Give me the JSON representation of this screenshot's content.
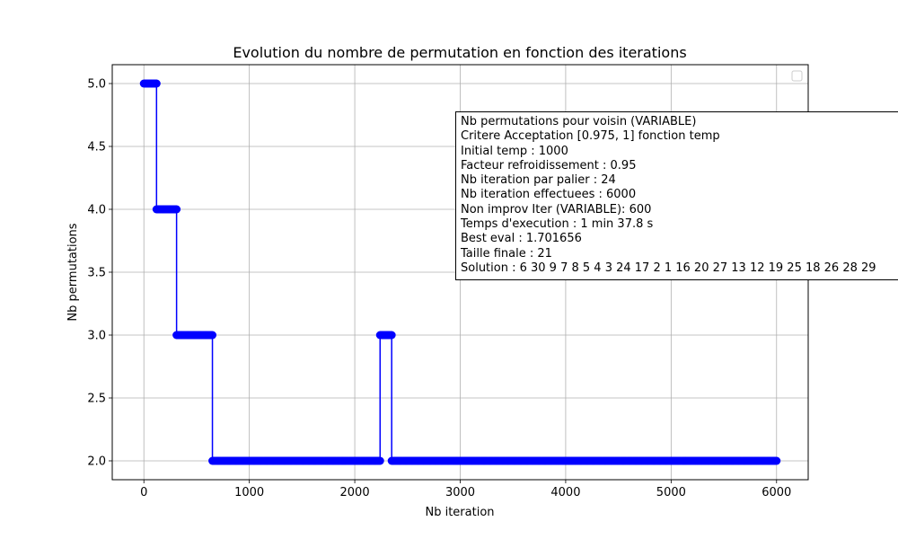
{
  "chart_data": {
    "type": "line",
    "title": "Evolution du nombre de permutation en fonction des iterations",
    "xlabel": "Nb iteration",
    "ylabel": "Nb permutations",
    "xlim": [
      -300,
      6300
    ],
    "ylim": [
      1.85,
      5.15
    ],
    "xticks": [
      0,
      1000,
      2000,
      3000,
      4000,
      5000,
      6000
    ],
    "xtick_labels": [
      "0",
      "1000",
      "2000",
      "3000",
      "4000",
      "5000",
      "6000"
    ],
    "yticks": [
      2.0,
      2.5,
      3.0,
      3.5,
      4.0,
      4.5,
      5.0
    ],
    "ytick_labels": [
      "2.0",
      "2.5",
      "3.0",
      "3.5",
      "4.0",
      "4.5",
      "5.0"
    ],
    "grid": true,
    "legend": "top-right (empty)",
    "series": [
      {
        "color": "#0000ff",
        "marker": "circle",
        "segments": [
          {
            "x_start": 0,
            "x_end": 120,
            "y": 5
          },
          {
            "x_start": 120,
            "x_end": 310,
            "y": 4
          },
          {
            "x_start": 310,
            "x_end": 650,
            "y": 3
          },
          {
            "x_start": 650,
            "x_end": 2240,
            "y": 2
          },
          {
            "x_start": 2240,
            "x_end": 2350,
            "y": 3
          },
          {
            "x_start": 2350,
            "x_end": 6000,
            "y": 2
          }
        ]
      }
    ],
    "info_box": [
      "Nb permutations pour voisin (VARIABLE)",
      "Critere Acceptation [0.975, 1] fonction temp",
      "Initial temp : 1000",
      "Facteur refroidissement : 0.95",
      "Nb iteration par palier : 24",
      "Nb iteration effectuees : 6000",
      "Non improv Iter (VARIABLE): 600",
      "Temps d'execution : 1 min 37.8 s",
      "Best eval : 1.701656",
      "Taille finale : 21",
      "Solution : 6 30 9 7 8 5 4 3 24 17 2 1 16 20 27 13 12 19 25 18 26 28 29"
    ]
  }
}
